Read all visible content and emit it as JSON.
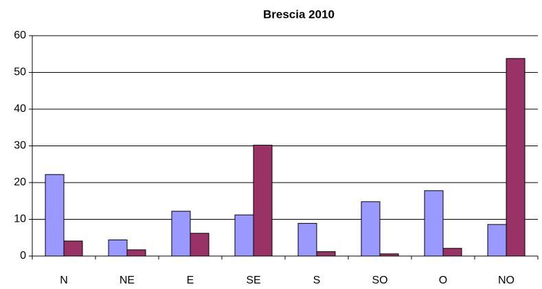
{
  "chart_data": {
    "type": "bar",
    "title": "Brescia 2010",
    "categories": [
      "N",
      "NE",
      "E",
      "SE",
      "S",
      "SO",
      "O",
      "NO"
    ],
    "series": [
      {
        "color": "#9999ff",
        "values": [
          22.2,
          4.4,
          12.2,
          11.2,
          8.9,
          14.8,
          17.8,
          8.6
        ]
      },
      {
        "color": "#993366",
        "values": [
          4.1,
          1.7,
          6.2,
          30.2,
          1.2,
          0.6,
          2.1,
          53.8
        ]
      }
    ],
    "ylim": [
      0,
      60
    ],
    "yticks": [
      0,
      10,
      20,
      30,
      40,
      50,
      60
    ],
    "grid": true
  }
}
